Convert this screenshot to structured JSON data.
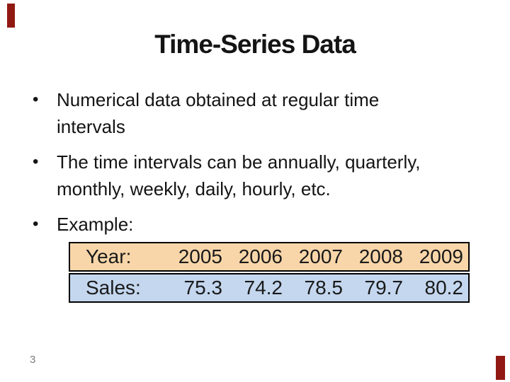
{
  "slide": {
    "title": "Time-Series Data",
    "bullet_glyph": "•",
    "bullets": [
      "Numerical data obtained at regular time\nintervals",
      "The time intervals can be annually, quarterly,\nmonthly, weekly, daily, hourly, etc.",
      "Example:"
    ],
    "page_number": "3"
  },
  "table": {
    "rows": [
      {
        "label": "Year:",
        "bg": "#F9D6A9",
        "values": [
          "2005",
          "2006",
          "2007",
          "2008",
          "2009"
        ]
      },
      {
        "label": "Sales:",
        "bg": "#C4D7EF",
        "values": [
          "75.3",
          "74.2",
          "78.5",
          "79.7",
          "80.2"
        ]
      }
    ]
  },
  "colors": {
    "accent_corner": "#911913",
    "year_row_bg": "#F9D6A9",
    "sales_row_bg": "#C4D7EF",
    "table_border": "#000000",
    "text": "#141414",
    "page_number_gray": "#7A7A7A"
  },
  "chart_data": {
    "type": "table",
    "categories": [
      "2005",
      "2006",
      "2007",
      "2008",
      "2009"
    ],
    "series": [
      {
        "name": "Year:",
        "values": [
          "2005",
          "2006",
          "2007",
          "2008",
          "2009"
        ]
      },
      {
        "name": "Sales:",
        "values": [
          75.3,
          74.2,
          78.5,
          79.7,
          80.2
        ]
      }
    ]
  }
}
